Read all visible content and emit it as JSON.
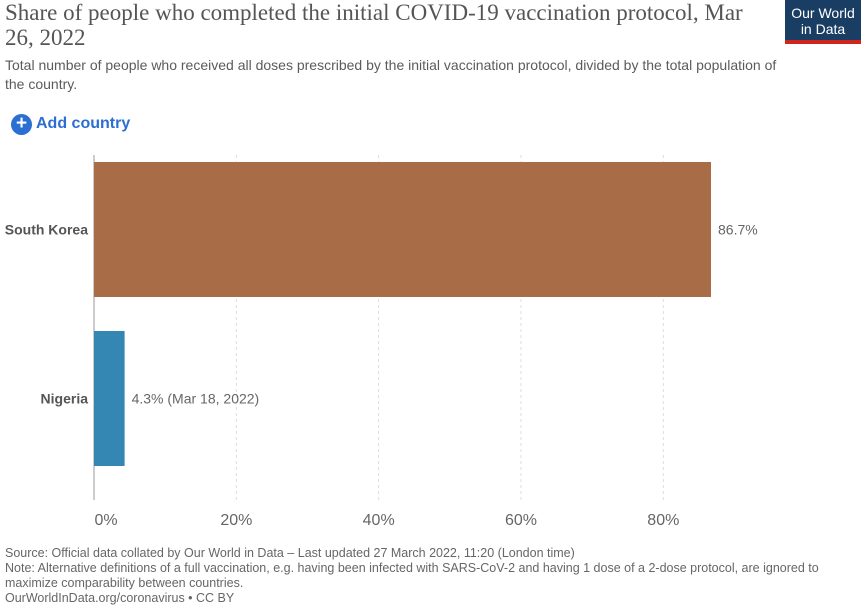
{
  "header": {
    "title": "Share of people who completed the initial COVID-19 vaccination protocol, Mar 26, 2022",
    "subtitle": "Total number of people who received all doses prescribed by the initial vaccination protocol, divided by the total population of the country."
  },
  "logo": {
    "line1": "Our World",
    "line2": "in Data"
  },
  "controls": {
    "add_country_label": "Add country",
    "add_icon": "plus-circle-icon"
  },
  "colors": {
    "south_korea": "#a86d47",
    "nigeria": "#3486b3",
    "grid": "#dddddd",
    "axis_label": "#666666"
  },
  "chart_data": {
    "type": "bar",
    "orientation": "horizontal",
    "categories": [
      "South Korea",
      "Nigeria"
    ],
    "values": [
      86.7,
      4.3
    ],
    "value_labels": [
      "86.7%",
      "4.3% (Mar 18, 2022)"
    ],
    "xlim": [
      0,
      86.7
    ],
    "xticks": [
      0,
      20,
      40,
      60,
      80
    ],
    "xtick_labels": [
      "0%",
      "20%",
      "40%",
      "60%",
      "80%"
    ],
    "grid": true
  },
  "footer": {
    "source": "Source: Official data collated by Our World in Data – Last updated 27 March 2022, 11:20 (London time)",
    "note": "Note: Alternative definitions of a full vaccination, e.g. having been infected with SARS-CoV-2 and having 1 dose of a 2-dose protocol, are ignored to maximize comparability between countries.",
    "license": "OurWorldInData.org/coronavirus • CC BY"
  }
}
